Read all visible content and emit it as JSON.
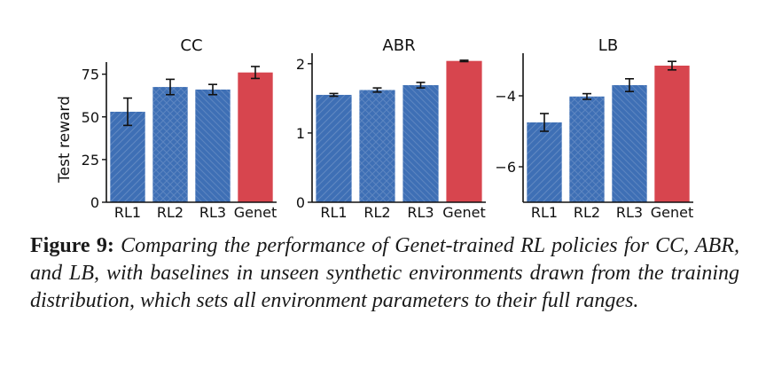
{
  "chart_data": [
    {
      "type": "bar",
      "title": "CC",
      "ylabel": "Test reward",
      "xlabel": "",
      "categories": [
        "RL1",
        "RL2",
        "RL3",
        "Genet"
      ],
      "values": [
        53,
        67.5,
        66,
        76
      ],
      "errors": [
        8,
        4.5,
        3,
        3.5
      ],
      "ylim": [
        0,
        80
      ],
      "yticks": [
        0,
        25,
        50,
        75
      ],
      "ytick_labels": [
        "0",
        "25",
        "50",
        "75"
      ],
      "grid": false
    },
    {
      "type": "bar",
      "title": "ABR",
      "ylabel": "",
      "xlabel": "",
      "categories": [
        "RL1",
        "RL2",
        "RL3",
        "Genet"
      ],
      "values": [
        1.55,
        1.62,
        1.69,
        2.04
      ],
      "errors": [
        0.02,
        0.03,
        0.04,
        0.01
      ],
      "ylim": [
        0,
        2.1
      ],
      "yticks": [
        0,
        1,
        2
      ],
      "ytick_labels": [
        "0",
        "1",
        "2"
      ],
      "grid": false
    },
    {
      "type": "bar",
      "title": "LB",
      "ylabel": "",
      "xlabel": "",
      "categories": [
        "RL1",
        "RL2",
        "RL3",
        "Genet"
      ],
      "values": [
        -4.75,
        -4.02,
        -3.7,
        -3.15
      ],
      "errors": [
        0.25,
        0.08,
        0.18,
        0.12
      ],
      "ylim": [
        -7.0,
        -2.9
      ],
      "yticks": [
        -6,
        -4
      ],
      "ytick_labels": [
        "−6",
        "−4"
      ],
      "grid": false
    }
  ],
  "colors": {
    "baseline": "#3e6fb5",
    "genet": "#d7454e"
  },
  "caption": {
    "label": "Figure 9:",
    "text": "Comparing the performance of Genet-trained RL policies for CC, ABR, and LB, with baselines in unseen synthetic environments drawn from the training distribution, which sets all environment parameters to their full ranges."
  }
}
